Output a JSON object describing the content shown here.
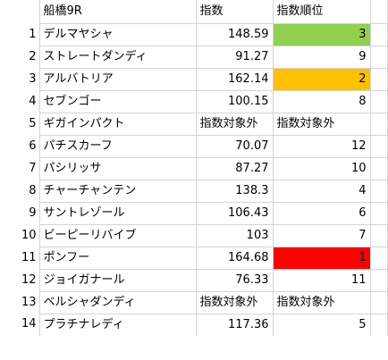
{
  "header": {
    "row_label": "",
    "race": "船橋9R",
    "index": "指数",
    "rank": "指数順位"
  },
  "rows": [
    {
      "n": "1",
      "name": "デルマヤシャ",
      "index": "148.59",
      "rank": "3",
      "idx_text": false,
      "rank_text": false,
      "highlight": "#92d050"
    },
    {
      "n": "2",
      "name": "ストレートダンディ",
      "index": "91.27",
      "rank": "9",
      "idx_text": false,
      "rank_text": false,
      "highlight": ""
    },
    {
      "n": "3",
      "name": "アルバトリア",
      "index": "162.14",
      "rank": "2",
      "idx_text": false,
      "rank_text": false,
      "highlight": "#ffc000"
    },
    {
      "n": "4",
      "name": "セブンゴー",
      "index": "100.15",
      "rank": "8",
      "idx_text": false,
      "rank_text": false,
      "highlight": ""
    },
    {
      "n": "5",
      "name": "ギガインパクト",
      "index": "指数対象外",
      "rank": "指数対象外",
      "idx_text": true,
      "rank_text": true,
      "highlight": ""
    },
    {
      "n": "6",
      "name": "パチスカーフ",
      "index": "70.07",
      "rank": "12",
      "idx_text": false,
      "rank_text": false,
      "highlight": ""
    },
    {
      "n": "7",
      "name": "パシリッサ",
      "index": "87.27",
      "rank": "10",
      "idx_text": false,
      "rank_text": false,
      "highlight": ""
    },
    {
      "n": "8",
      "name": "チャーチャンテン",
      "index": "138.3",
      "rank": "4",
      "idx_text": false,
      "rank_text": false,
      "highlight": ""
    },
    {
      "n": "9",
      "name": "サントレゾール",
      "index": "106.43",
      "rank": "6",
      "idx_text": false,
      "rank_text": false,
      "highlight": ""
    },
    {
      "n": "10",
      "name": "ビーピーリバイブ",
      "index": "103",
      "rank": "7",
      "idx_text": false,
      "rank_text": false,
      "highlight": ""
    },
    {
      "n": "11",
      "name": "ポンフー",
      "index": "164.68",
      "rank": "1",
      "idx_text": false,
      "rank_text": false,
      "highlight": "#ff0000"
    },
    {
      "n": "12",
      "name": "ジョイガナール",
      "index": "76.33",
      "rank": "11",
      "idx_text": false,
      "rank_text": false,
      "highlight": ""
    },
    {
      "n": "13",
      "name": "ベルシャダンディ",
      "index": "指数対象外",
      "rank": "指数対象外",
      "idx_text": true,
      "rank_text": true,
      "highlight": ""
    },
    {
      "n": "14",
      "name": "プラチナレディ",
      "index": "117.36",
      "rank": "5",
      "idx_text": false,
      "rank_text": false,
      "highlight": ""
    }
  ]
}
